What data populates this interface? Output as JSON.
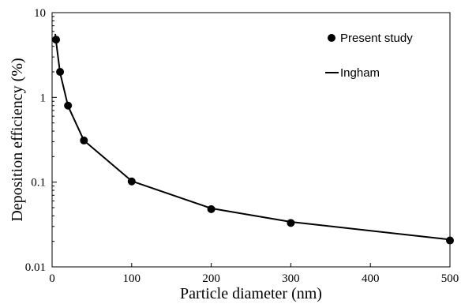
{
  "chart_data": {
    "type": "line",
    "title": "",
    "xlabel": "Particle diameter (nm)",
    "ylabel": "Deposition efficiency (%)",
    "xlim": [
      0,
      500
    ],
    "ylim": [
      0.01,
      10
    ],
    "yscale": "log",
    "grid": false,
    "legend_position": "top-right",
    "x_ticks": [
      0,
      100,
      200,
      300,
      400,
      500
    ],
    "x_tick_labels": [
      "0",
      "100",
      "200",
      "300",
      "400",
      "500"
    ],
    "y_ticks": [
      10,
      1,
      0.1,
      0.01
    ],
    "y_tick_labels": [
      "10",
      "1",
      "0.1",
      "0.01"
    ],
    "series": [
      {
        "name": "Present study",
        "kind": "scatter",
        "color": "#000000",
        "x": [
          5,
          10,
          20,
          40,
          100,
          200,
          300,
          500
        ],
        "y": [
          4.8,
          2.0,
          0.8,
          0.31,
          0.102,
          0.048,
          0.033,
          0.0205
        ]
      },
      {
        "name": "Ingham",
        "kind": "line",
        "color": "#000000",
        "x": [
          4,
          5,
          10,
          20,
          40,
          100,
          200,
          300,
          500
        ],
        "y": [
          5.6,
          4.6,
          1.95,
          0.79,
          0.31,
          0.103,
          0.049,
          0.034,
          0.021
        ]
      }
    ]
  }
}
